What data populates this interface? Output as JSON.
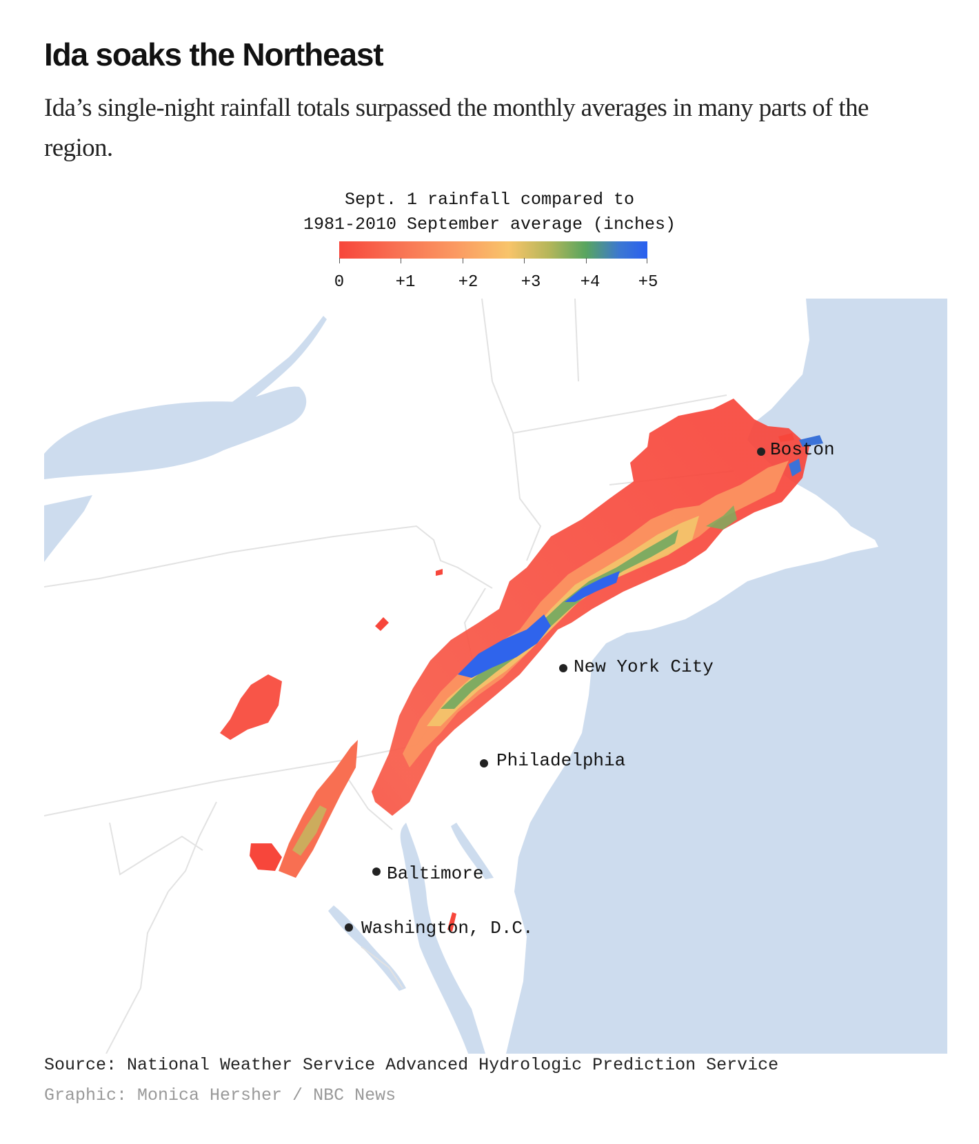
{
  "header": {
    "title": "Ida soaks the Northeast",
    "subtitle": "Ida’s single-night rainfall totals surpassed the monthly averages in many parts of the region."
  },
  "legend": {
    "title_line1": "Sept. 1 rainfall compared to",
    "title_line2": "1981-2010 September average (inches)",
    "tick_labels": [
      "0",
      "+1",
      "+2",
      "+3",
      "+4",
      "+5"
    ],
    "scale_colors": [
      "#f7463b",
      "#f86f52",
      "#fb9a62",
      "#f8c46a",
      "#b5b65a",
      "#58a55f",
      "#3c77d2",
      "#2a60f0"
    ]
  },
  "map": {
    "water_color": "#cddcee",
    "land_color": "#ffffff",
    "border_color": "#e2e2e2",
    "cities": [
      {
        "name": "Boston"
      },
      {
        "name": "New York City"
      },
      {
        "name": "Philadelphia"
      },
      {
        "name": "Baltimore"
      },
      {
        "name": "Washington, D.C."
      }
    ]
  },
  "footer": {
    "source": "Source: National Weather Service Advanced Hydrologic Prediction Service",
    "credit": "Graphic: Monica Hersher / NBC News"
  }
}
